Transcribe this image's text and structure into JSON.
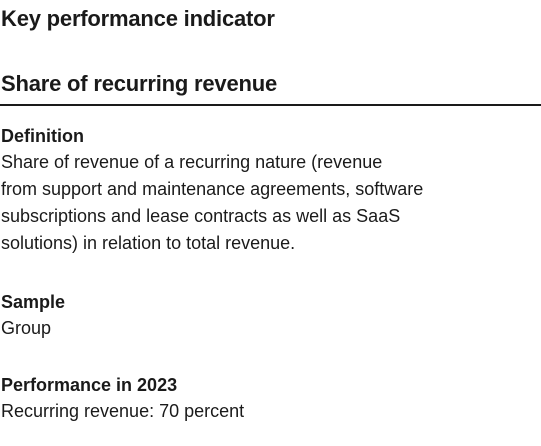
{
  "header": {
    "kpi_label": "Key performance indicator",
    "kpi_title": "Share of recurring revenue"
  },
  "definition": {
    "heading": "Definition",
    "lines": [
      "Share of revenue of a recurring nature (revenue",
      "from support and maintenance agreements, software",
      "subscriptions and lease contracts as well as SaaS",
      "solutions) in relation to total revenue."
    ]
  },
  "sample": {
    "heading": "Sample",
    "text": "Group"
  },
  "performance": {
    "heading": "Performance in 2023",
    "text": "Recurring revenue: 70 percent"
  }
}
